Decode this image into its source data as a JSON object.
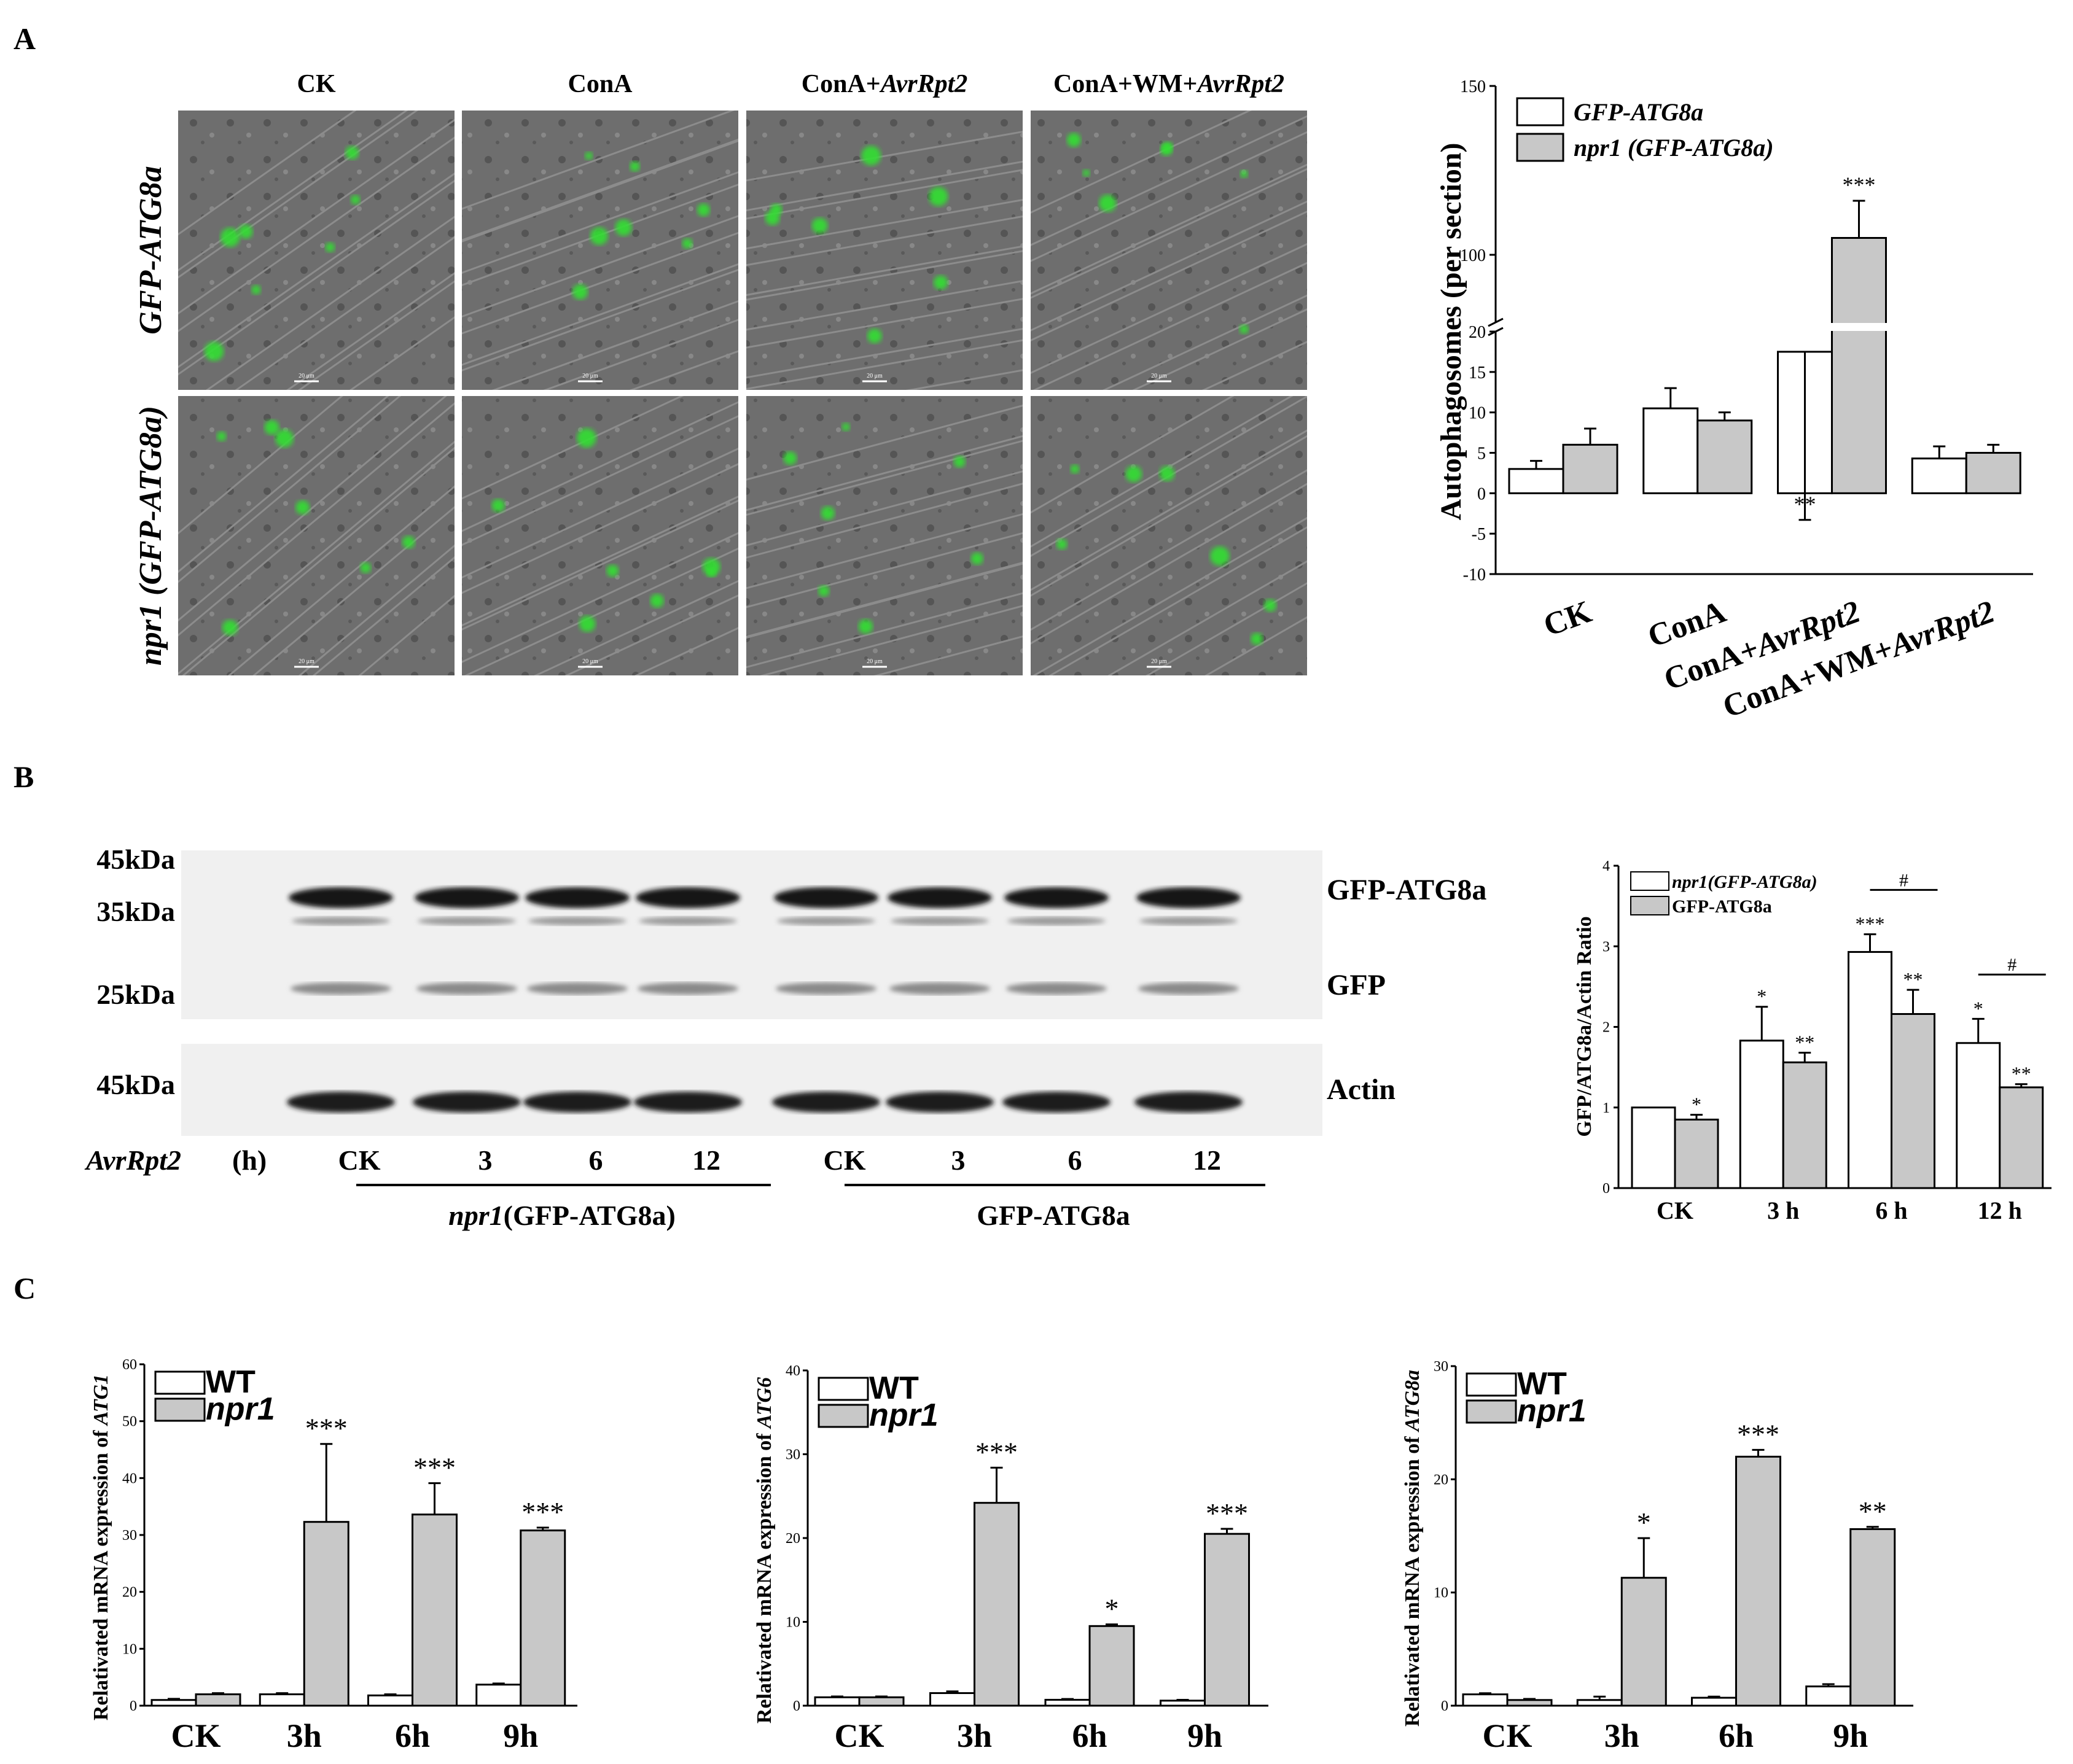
{
  "panel_letters": {
    "a": "A",
    "b": "B",
    "c": "C"
  },
  "panel_a": {
    "columns": [
      {
        "pre": "CK",
        "it": ""
      },
      {
        "pre": "ConA",
        "it": ""
      },
      {
        "pre": "ConA+",
        "it": "AvrRpt2"
      },
      {
        "pre": "ConA+WM+",
        "it": "AvrRpt2"
      }
    ],
    "rows": [
      {
        "it": "GFP-ATG8a",
        "post": ""
      },
      {
        "it": "npr1 (GFP-ATG8a)",
        "post": ""
      }
    ],
    "scale_bar": "20 μm"
  },
  "panel_b_blot": {
    "markers": [
      "45kDa",
      "35kDa",
      "25kDa",
      "45kDa"
    ],
    "band_labels": [
      "GFP-ATG8a",
      "GFP",
      "Actin"
    ],
    "time_label_it": "AvrRpt2",
    "time_label": " (h)",
    "lanes": [
      "CK",
      "3",
      "6",
      "12",
      "CK",
      "3",
      "6",
      "12"
    ],
    "group1_it": "npr1",
    "group1": "(GFP-ATG8a)",
    "group2": "GFP-ATG8a"
  },
  "chart_data": [
    {
      "id": "autophagosomes",
      "type": "bar",
      "categories": [
        "CK",
        "ConA",
        "ConA+AvrRpt2",
        "ConA+WM+AvrRpt2"
      ],
      "category_labels": [
        {
          "pre": "CK",
          "it": ""
        },
        {
          "pre": "ConA",
          "it": ""
        },
        {
          "pre": "ConA+",
          "it": "AvrRpt2"
        },
        {
          "pre": "ConA+WM+",
          "it": "AvrRpt2"
        }
      ],
      "ylabel": "Autophagosomes (per section)",
      "ylim_lower": [
        -10,
        20
      ],
      "ylim_upper": [
        80,
        150
      ],
      "axis_break": true,
      "ticks_lower": [
        "-10",
        "-5",
        "0",
        "5",
        "10",
        "15",
        "20"
      ],
      "ticks_upper": [
        "100",
        "150"
      ],
      "legend_position": "top-right",
      "series": [
        {
          "name": "GFP-ATG8a",
          "color": "#ffffff",
          "values": [
            3.0,
            10.5,
            17.5,
            4.3
          ],
          "errors": [
            1.0,
            2.5,
            4.0,
            1.5
          ],
          "significance": [
            "",
            "",
            "**",
            ""
          ]
        },
        {
          "name": "npr1 (GFP-ATG8a)",
          "color": "#c8c8c8",
          "values": [
            6.0,
            9.0,
            105.0,
            5.0
          ],
          "errors": [
            2.0,
            1.0,
            11.0,
            1.0
          ],
          "significance": [
            "",
            "",
            "***",
            ""
          ]
        }
      ]
    },
    {
      "id": "gfp-ratio",
      "type": "bar",
      "categories": [
        "CK",
        "3 h",
        "6 h",
        "12 h"
      ],
      "ylabel": "GFP/ATG8a/Actin Ratio",
      "ylim": [
        0,
        4
      ],
      "ticks": [
        "0",
        "1",
        "2",
        "3",
        "4"
      ],
      "legend_position": "top-left",
      "series": [
        {
          "name": "npr1(GFP-ATG8a)",
          "color": "#ffffff",
          "values": [
            1.0,
            1.83,
            2.93,
            1.8
          ],
          "errors": [
            0.0,
            0.42,
            0.22,
            0.3
          ],
          "significance": [
            "",
            "*",
            "***",
            "*"
          ]
        },
        {
          "name": "GFP-ATG8a",
          "color": "#c8c8c8",
          "values": [
            0.85,
            1.56,
            2.16,
            1.25
          ],
          "errors": [
            0.06,
            0.12,
            0.3,
            0.04
          ],
          "significance": [
            "*",
            "**",
            "**",
            "**"
          ]
        }
      ],
      "annotations": [
        {
          "text": "#",
          "category": "6 h"
        },
        {
          "text": "#",
          "category": "12 h"
        }
      ]
    },
    {
      "id": "atg1",
      "type": "bar",
      "categories": [
        "CK",
        "3h",
        "6h",
        "9h"
      ],
      "ylabel_pre": "Relativated mRNA expression of ",
      "ylabel_it": "ATG1",
      "ylim": [
        0,
        60
      ],
      "ticks": [
        "0",
        "10",
        "20",
        "30",
        "40",
        "50",
        "60"
      ],
      "legend_position": "top-left",
      "series": [
        {
          "name": "WT",
          "color": "#ffffff",
          "values": [
            1.0,
            2.0,
            1.8,
            3.7
          ],
          "errors": [
            0.2,
            0.2,
            0.2,
            0.2
          ],
          "significance": [
            "",
            "",
            "",
            ""
          ]
        },
        {
          "name": "npr1",
          "color": "#c8c8c8",
          "values": [
            2.0,
            32.3,
            33.6,
            30.8
          ],
          "errors": [
            0.2,
            13.7,
            5.5,
            0.5
          ],
          "significance": [
            "",
            "***",
            "***",
            "***"
          ]
        }
      ]
    },
    {
      "id": "atg6",
      "type": "bar",
      "categories": [
        "CK",
        "3h",
        "6h",
        "9h"
      ],
      "ylabel_pre": "Relativated mRNA expression of ",
      "ylabel_it": "ATG6",
      "ylim": [
        0,
        40
      ],
      "ticks": [
        "0",
        "10",
        "20",
        "30",
        "40"
      ],
      "legend_position": "top-left",
      "series": [
        {
          "name": "WT",
          "color": "#ffffff",
          "values": [
            1.0,
            1.5,
            0.7,
            0.6
          ],
          "errors": [
            0.1,
            0.2,
            0.1,
            0.1
          ],
          "significance": [
            "",
            "",
            "",
            ""
          ]
        },
        {
          "name": "npr1",
          "color": "#c8c8c8",
          "values": [
            1.0,
            24.2,
            9.5,
            20.5
          ],
          "errors": [
            0.1,
            4.2,
            0.2,
            0.6
          ],
          "significance": [
            "",
            "***",
            "*",
            "***"
          ]
        }
      ]
    },
    {
      "id": "atg8a",
      "type": "bar",
      "categories": [
        "CK",
        "3h",
        "6h",
        "9h"
      ],
      "ylabel_pre": "Relativated mRNA expression of ",
      "ylabel_it": "ATG8a",
      "ylim": [
        0,
        30
      ],
      "ticks": [
        "0",
        "10",
        "20",
        "30"
      ],
      "legend_position": "top-left",
      "series": [
        {
          "name": "WT",
          "color": "#ffffff",
          "values": [
            1.0,
            0.5,
            0.7,
            1.7
          ],
          "errors": [
            0.1,
            0.3,
            0.1,
            0.2
          ],
          "significance": [
            "",
            "",
            "",
            ""
          ]
        },
        {
          "name": "npr1",
          "color": "#c8c8c8",
          "values": [
            0.5,
            11.3,
            22.0,
            15.6
          ],
          "errors": [
            0.1,
            3.5,
            0.6,
            0.2
          ],
          "significance": [
            "",
            "*",
            "***",
            "**"
          ]
        }
      ]
    }
  ]
}
